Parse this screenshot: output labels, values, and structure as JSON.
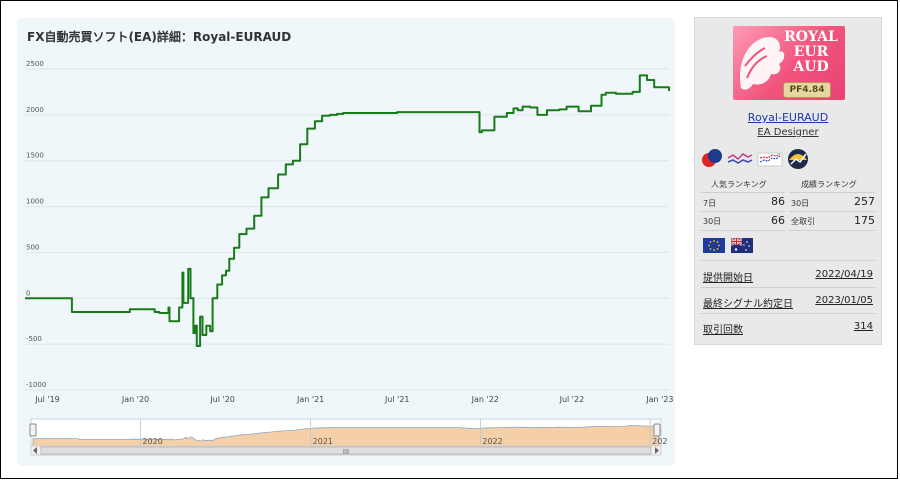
{
  "title": "FX自動売買ソフト(EA)詳細：Royal-EURAUD",
  "chart_data": {
    "type": "line",
    "ylim": [
      -1000,
      2500
    ],
    "yticks": [
      "2500",
      "2000",
      "1500",
      "1000",
      "500",
      "0",
      "-500",
      "-1000"
    ],
    "x_tick_labels": [
      "Jul '19",
      "Jan '20",
      "Jul '20",
      "Jan '21",
      "Jul '21",
      "Jan '22",
      "Jul '22",
      "Jan '23"
    ],
    "series": [
      {
        "color": "#1a7a1a",
        "x": [
          "2019-05-15",
          "2019-08-20",
          "2019-08-21",
          "2019-12-01",
          "2019-12-20",
          "2020-02-10",
          "2020-02-20",
          "2020-03-10",
          "2020-03-12",
          "2020-04-01",
          "2020-04-08",
          "2020-04-10",
          "2020-04-20",
          "2020-04-25",
          "2020-05-01",
          "2020-05-05",
          "2020-05-08",
          "2020-05-15",
          "2020-05-20",
          "2020-05-28",
          "2020-06-05",
          "2020-06-10",
          "2020-06-20",
          "2020-06-30",
          "2020-07-08",
          "2020-07-15",
          "2020-07-25",
          "2020-08-05",
          "2020-08-20",
          "2020-09-05",
          "2020-09-20",
          "2020-10-05",
          "2020-10-25",
          "2020-11-10",
          "2020-11-25",
          "2020-12-10",
          "2020-12-25",
          "2021-01-10",
          "2021-01-25",
          "2021-02-10",
          "2021-02-25",
          "2021-03-10",
          "2021-04-01",
          "2021-05-01",
          "2021-06-01",
          "2021-07-01",
          "2021-08-15",
          "2021-10-01",
          "2021-11-15",
          "2021-12-20",
          "2021-12-25",
          "2022-01-20",
          "2022-02-15",
          "2022-03-01",
          "2022-03-10",
          "2022-03-20",
          "2022-04-05",
          "2022-04-20",
          "2022-05-10",
          "2022-06-05",
          "2022-06-20",
          "2022-07-15",
          "2022-08-10",
          "2022-09-01",
          "2022-09-10",
          "2022-10-01",
          "2022-11-05",
          "2022-11-20",
          "2022-12-05",
          "2022-12-20",
          "2023-01-05",
          "2023-01-20"
        ],
        "y": [
          0,
          0,
          -150,
          -150,
          -120,
          -150,
          -160,
          -100,
          -250,
          -100,
          280,
          -50,
          320,
          0,
          -380,
          -300,
          -520,
          -200,
          -400,
          -300,
          -360,
          0,
          150,
          250,
          300,
          430,
          550,
          700,
          760,
          900,
          1100,
          1200,
          1350,
          1460,
          1500,
          1680,
          1850,
          1930,
          1990,
          2000,
          2010,
          2020,
          2020,
          2020,
          2020,
          2030,
          2030,
          2030,
          2030,
          1810,
          1830,
          1980,
          2020,
          2070,
          2050,
          2090,
          2080,
          2000,
          2050,
          2060,
          2090,
          2040,
          2100,
          2220,
          2240,
          2230,
          2250,
          2430,
          2380,
          2300,
          2300,
          2260
        ]
      }
    ],
    "navigator": {
      "year_labels": [
        "2020",
        "2021",
        "2022",
        "202"
      ],
      "scroll_label": "III"
    }
  },
  "sidebar": {
    "logo_text": "ROYAL\nEUR\nAUD",
    "logo_badge": "PF4.84",
    "ea_name": "Royal-EURAUD",
    "designer": "EA Designer",
    "popularity_header": "人気ランキング",
    "performance_header": "成績ランキング",
    "pop_rows": [
      {
        "label": "7日",
        "value": "86"
      },
      {
        "label": "30日",
        "value": "66"
      }
    ],
    "perf_rows": [
      {
        "label": "30日",
        "value": "257"
      },
      {
        "label": "全取引",
        "value": "175"
      }
    ],
    "flags": [
      "eu-flag",
      "au-flag"
    ],
    "info": [
      {
        "label": "提供開始日",
        "value": "2022/04/19"
      },
      {
        "label": "最終シグナル約定日",
        "value": "2023/01/05"
      },
      {
        "label": "取引回数",
        "value": "314"
      }
    ]
  }
}
